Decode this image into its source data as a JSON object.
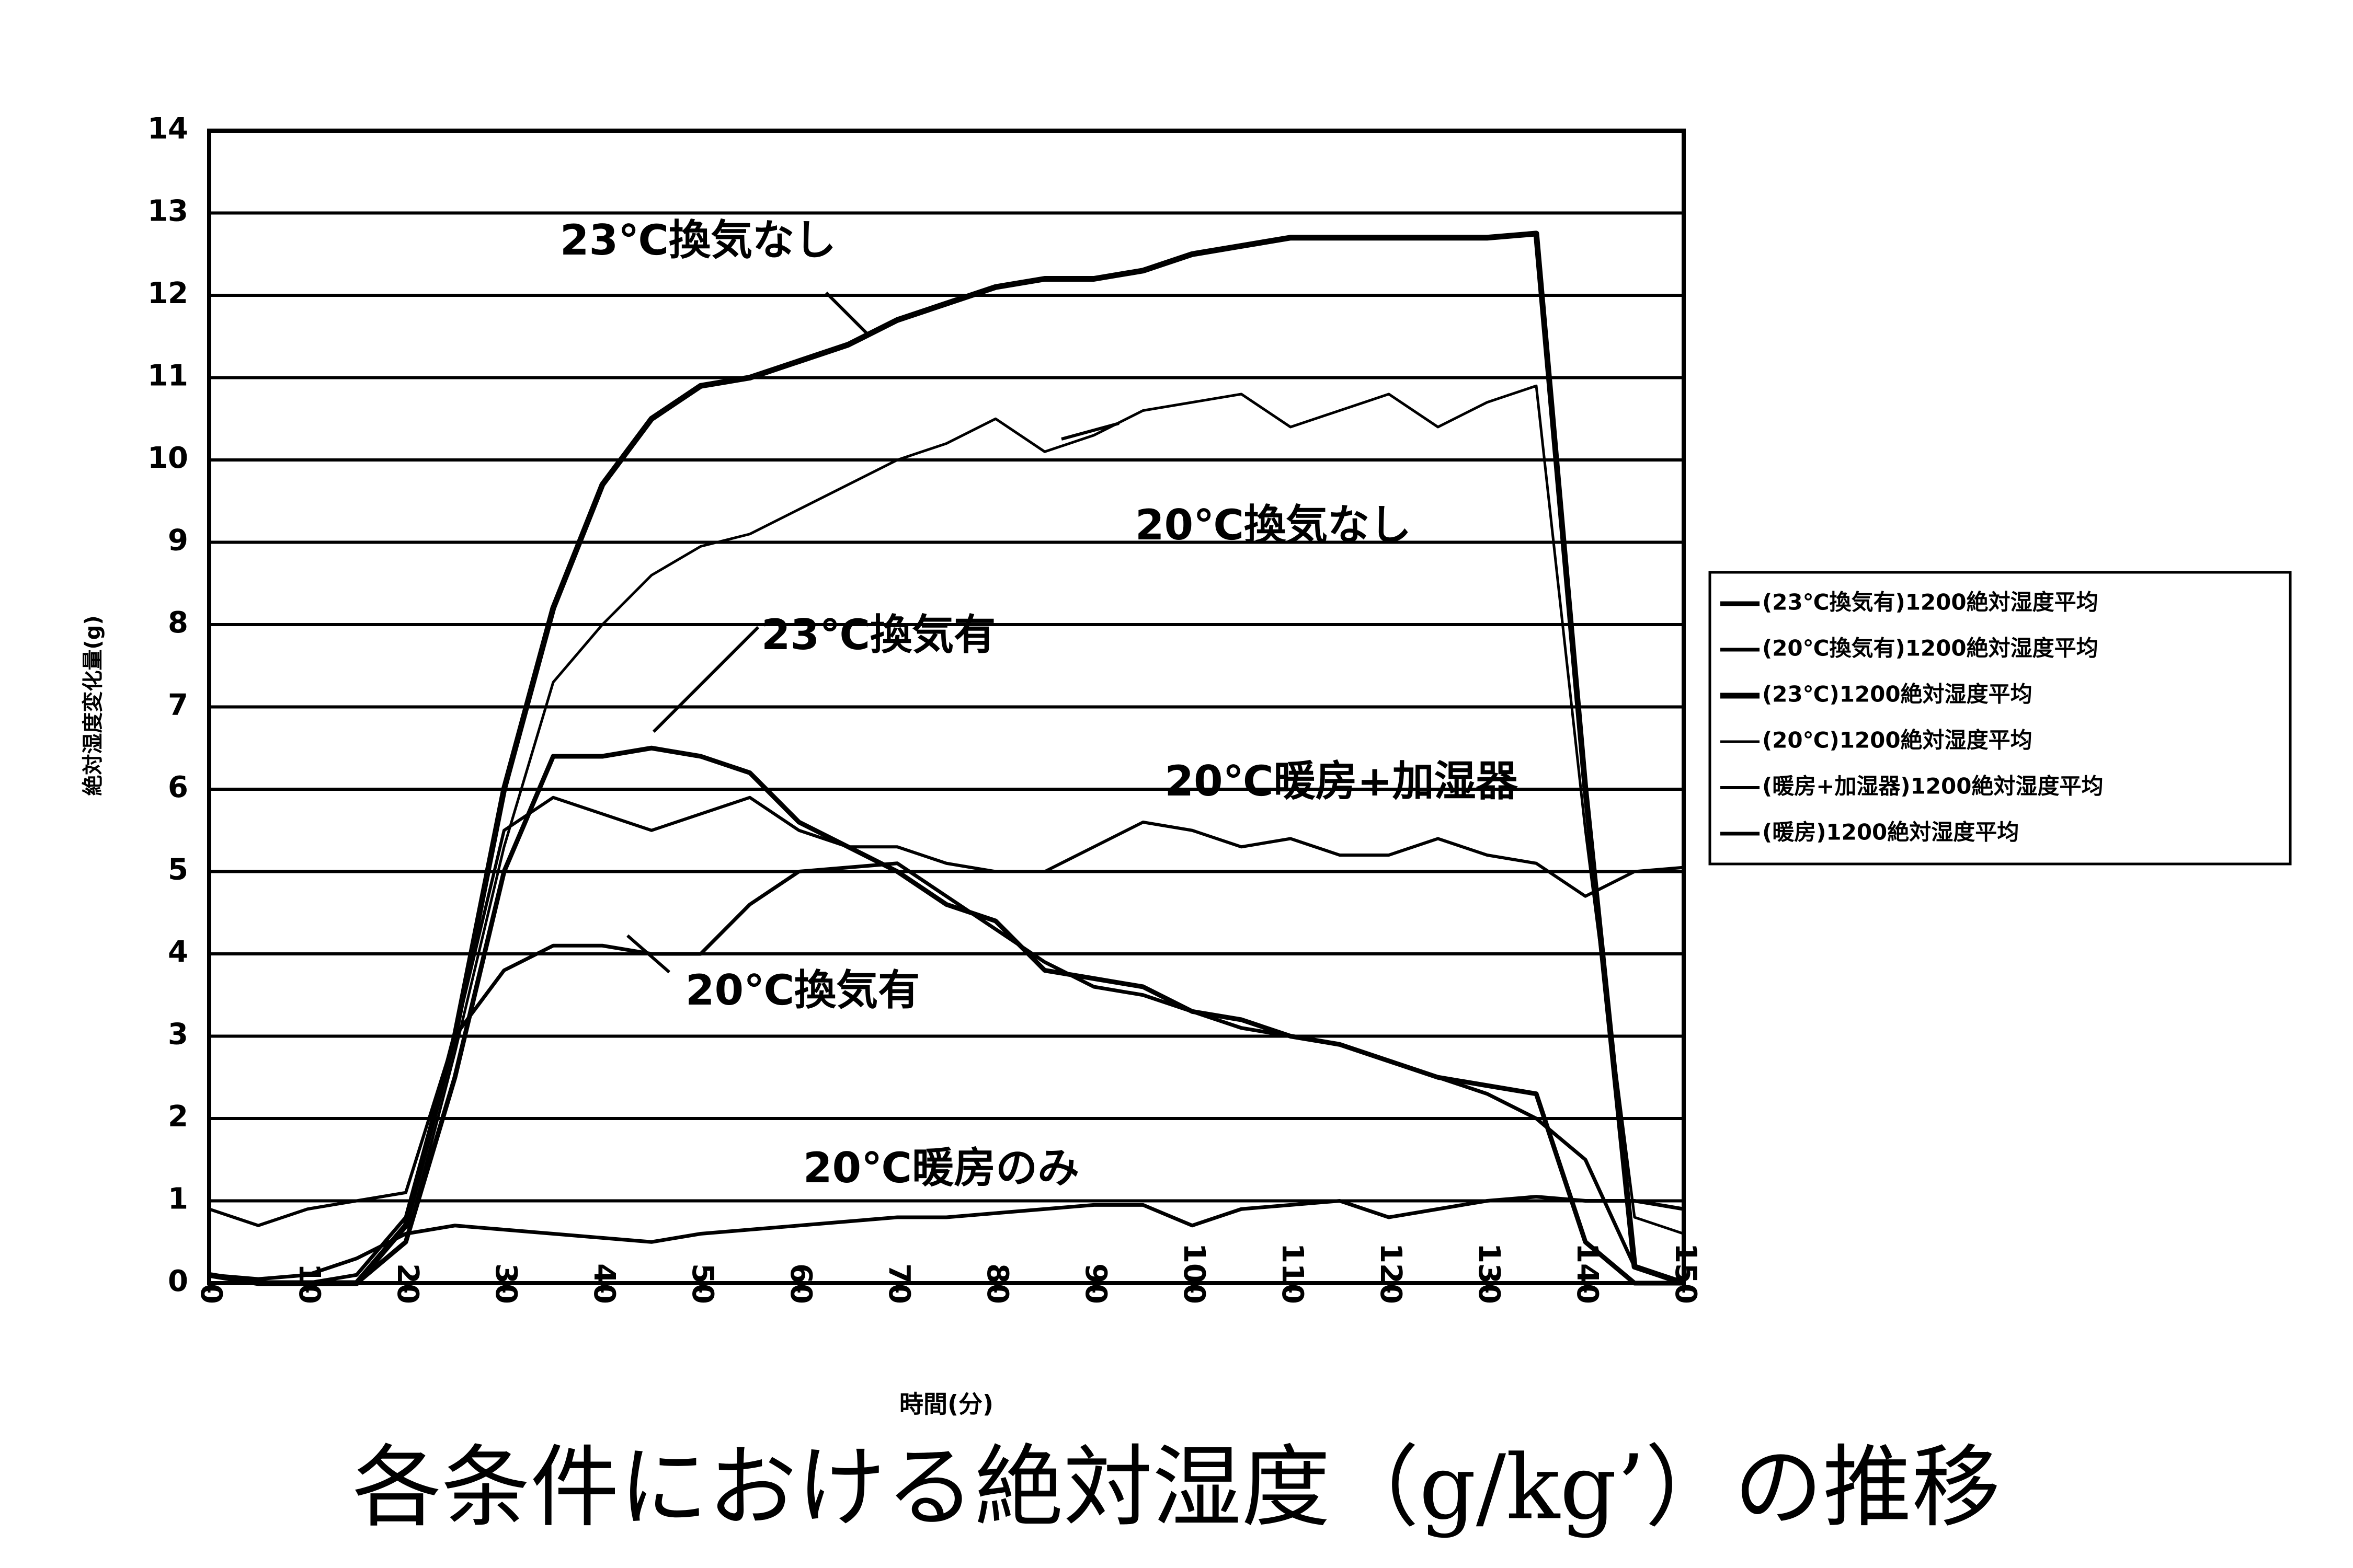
{
  "chart_data": {
    "type": "line",
    "caption": "各条件における絶対湿度（g/kg’）の推移",
    "x_label": "時間(分)",
    "y_label": "絶対湿度変化量(g)",
    "x": [
      0,
      5,
      10,
      15,
      20,
      25,
      30,
      35,
      40,
      45,
      50,
      55,
      60,
      65,
      70,
      75,
      80,
      85,
      90,
      95,
      100,
      105,
      110,
      115,
      120,
      125,
      130,
      135,
      140,
      145,
      150
    ],
    "xlim": [
      0,
      150
    ],
    "xticks": [
      0,
      10,
      20,
      30,
      40,
      50,
      60,
      70,
      80,
      90,
      100,
      110,
      120,
      130,
      140,
      150
    ],
    "ylim": [
      0,
      14
    ],
    "yticks": [
      0,
      1,
      2,
      3,
      4,
      5,
      6,
      7,
      8,
      9,
      10,
      11,
      12,
      13,
      14
    ],
    "grid": true,
    "legend": "right",
    "series": [
      {
        "name": "(23℃換気有)1200絶対湿度平均",
        "color": "#000000",
        "values": [
          0.1,
          0,
          0,
          0,
          0.5,
          2.5,
          5,
          6.4,
          6.4,
          6.5,
          6.4,
          6.2,
          5.6,
          5.3,
          5.0,
          4.6,
          4.4,
          3.8,
          3.7,
          3.6,
          3.3,
          3.2,
          3.0,
          2.9,
          2.7,
          2.5,
          2.4,
          2.3,
          0.5,
          0,
          0
        ]
      },
      {
        "name": "(20℃換気有)1200絶対湿度平均",
        "color": "#000000",
        "values": [
          0.1,
          0,
          0,
          0.1,
          0.8,
          3.0,
          3.8,
          4.1,
          4.1,
          4.0,
          4.0,
          4.6,
          5.0,
          5.05,
          5.1,
          4.7,
          4.3,
          3.9,
          3.6,
          3.5,
          3.3,
          3.1,
          3.0,
          2.9,
          2.7,
          2.5,
          2.3,
          2.0,
          1.5,
          0.2,
          0
        ]
      },
      {
        "name": "(23℃)1200絶対湿度平均",
        "color": "#000000",
        "values": [
          0.1,
          0,
          0,
          0,
          0.7,
          3,
          6,
          8.2,
          9.7,
          10.5,
          10.9,
          11.0,
          11.2,
          11.4,
          11.7,
          11.9,
          12.1,
          12.2,
          12.2,
          12.3,
          12.5,
          12.6,
          12.7,
          12.7,
          12.7,
          12.7,
          12.7,
          12.75,
          6,
          0.2,
          0
        ]
      },
      {
        "name": "(20℃)1200絶対湿度平均",
        "color": "#000000",
        "values": [
          0.1,
          0,
          0,
          0,
          0.5,
          2.8,
          5.3,
          7.3,
          8.0,
          8.6,
          8.95,
          9.1,
          9.4,
          9.7,
          10.0,
          10.2,
          10.5,
          10.1,
          10.3,
          10.6,
          10.7,
          10.8,
          10.4,
          10.6,
          10.8,
          10.4,
          10.7,
          10.9,
          5.5,
          0.8,
          0.6
        ]
      },
      {
        "name": "(暖房+加湿器)1200絶対湿度平均",
        "color": "#000000",
        "values": [
          0.9,
          0.7,
          0.9,
          1.0,
          1.1,
          3.0,
          5.5,
          5.9,
          5.7,
          5.5,
          5.7,
          5.9,
          5.5,
          5.3,
          5.3,
          5.1,
          5.0,
          5.0,
          5.3,
          5.6,
          5.5,
          5.3,
          5.4,
          5.2,
          5.2,
          5.4,
          5.2,
          5.1,
          4.7,
          5.0,
          5.05
        ]
      },
      {
        "name": "(暖房)1200絶対湿度平均",
        "color": "#000000",
        "values": [
          0.1,
          0.05,
          0.1,
          0.3,
          0.6,
          0.7,
          0.65,
          0.6,
          0.55,
          0.5,
          0.6,
          0.65,
          0.7,
          0.75,
          0.8,
          0.8,
          0.85,
          0.9,
          0.95,
          0.95,
          0.7,
          0.9,
          0.95,
          1.0,
          0.8,
          0.9,
          1.0,
          1.05,
          1.0,
          1.0,
          0.9
        ]
      }
    ],
    "annotations": [
      "23℃換気なし",
      "20℃換気なし",
      "23℃換気有",
      "20℃暖房+加湿器",
      "20℃換気有",
      "20℃暖房のみ"
    ]
  }
}
